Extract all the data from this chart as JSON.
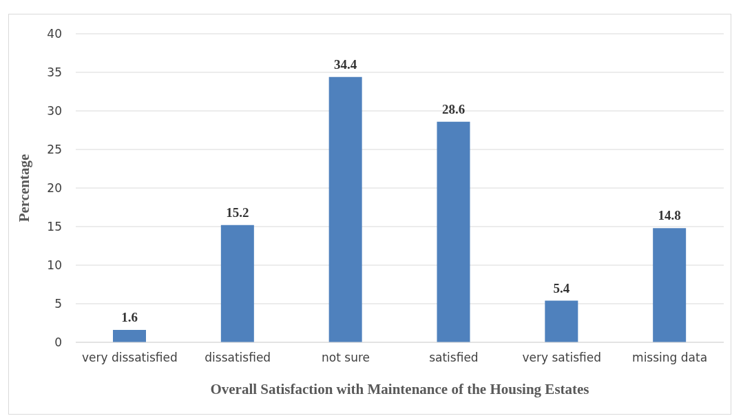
{
  "chart_data": {
    "type": "bar",
    "xlabel": "Overall Satisfaction with Maintenance of the Housing Estates",
    "ylabel": "Percentage",
    "categories": [
      "very dissatisfied",
      "dissatisfied",
      "not sure",
      "satisfied",
      "very satisfied",
      "missing data"
    ],
    "values": [
      1.6,
      15.2,
      34.4,
      28.6,
      5.4,
      14.8
    ],
    "color": "#4f81bd",
    "ylim": [
      0,
      40
    ],
    "yticks": [
      0,
      5,
      10,
      15,
      20,
      25,
      30,
      35,
      40
    ],
    "grid": "y",
    "data_labels": true
  }
}
